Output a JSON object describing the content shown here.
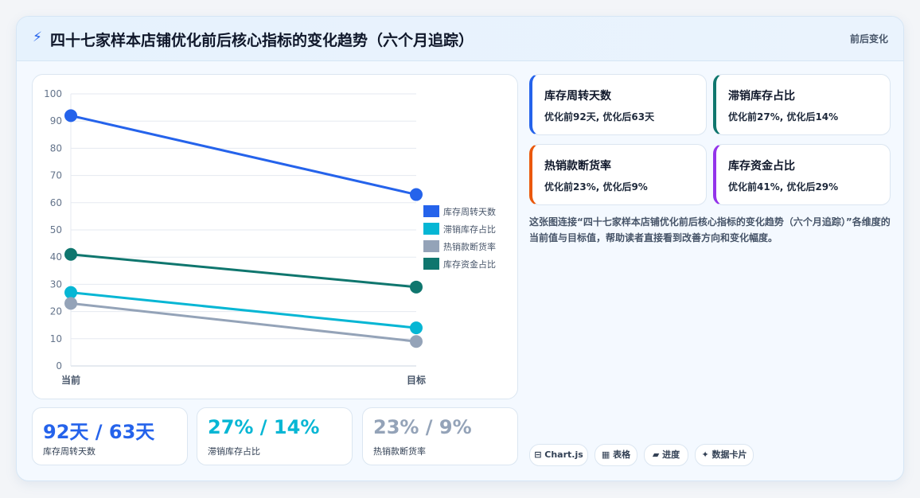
{
  "header": {
    "icon": "lightning-icon",
    "title": "四十七家样本店铺优化前后核心指标的变化趋势（六个月追踪）",
    "tag": "前后变化"
  },
  "chart_data": {
    "type": "line",
    "categories": [
      "当前",
      "目标"
    ],
    "ylim": [
      0,
      100
    ],
    "yticks": [
      0,
      10,
      20,
      30,
      40,
      50,
      60,
      70,
      80,
      90,
      100
    ],
    "grid": true,
    "legend_position": "right",
    "series": [
      {
        "name": "库存周转天数",
        "values": [
          92,
          63
        ],
        "color": "#2563eb"
      },
      {
        "name": "滞销库存占比",
        "values": [
          27,
          14
        ],
        "color": "#06b6d4"
      },
      {
        "name": "热销款断货率",
        "values": [
          23,
          9
        ],
        "color": "#94a3b8"
      },
      {
        "name": "库存资金占比",
        "values": [
          41,
          29
        ],
        "color": "#0f766e"
      }
    ]
  },
  "stats": [
    {
      "value": "92天 / 63天",
      "label": "库存周转天数",
      "color": "#2563eb"
    },
    {
      "value": "27% / 14%",
      "label": "滞销库存占比",
      "color": "#06b6d4"
    },
    {
      "value": "23% / 9%",
      "label": "热销款断货率",
      "color": "#94a3b8"
    }
  ],
  "metrics": [
    {
      "title": "库存周转天数",
      "value": "优化前92天, 优化后63天",
      "accent": "#2563eb"
    },
    {
      "title": "滞销库存占比",
      "value": "优化前27%, 优化后14%",
      "accent": "#0f766e"
    },
    {
      "title": "热销款断货率",
      "value": "优化前23%, 优化后9%",
      "accent": "#ea580c"
    },
    {
      "title": "库存资金占比",
      "value": "优化前41%, 优化后29%",
      "accent": "#9333ea"
    }
  ],
  "description": "这张图连接“四十七家样本店铺优化前后核心指标的变化趋势（六个月追踪）”各维度的当前值与目标值，帮助读者直接看到改善方向和变化幅度。",
  "pills": [
    {
      "label": "⊟ Chart.js",
      "icon": "chart-icon"
    },
    {
      "label": "▦ 表格",
      "icon": "table-icon"
    },
    {
      "label": "▰ 进度",
      "icon": "progress-icon"
    },
    {
      "label": "✦ 数据卡片",
      "icon": "sparkle-icon"
    }
  ]
}
